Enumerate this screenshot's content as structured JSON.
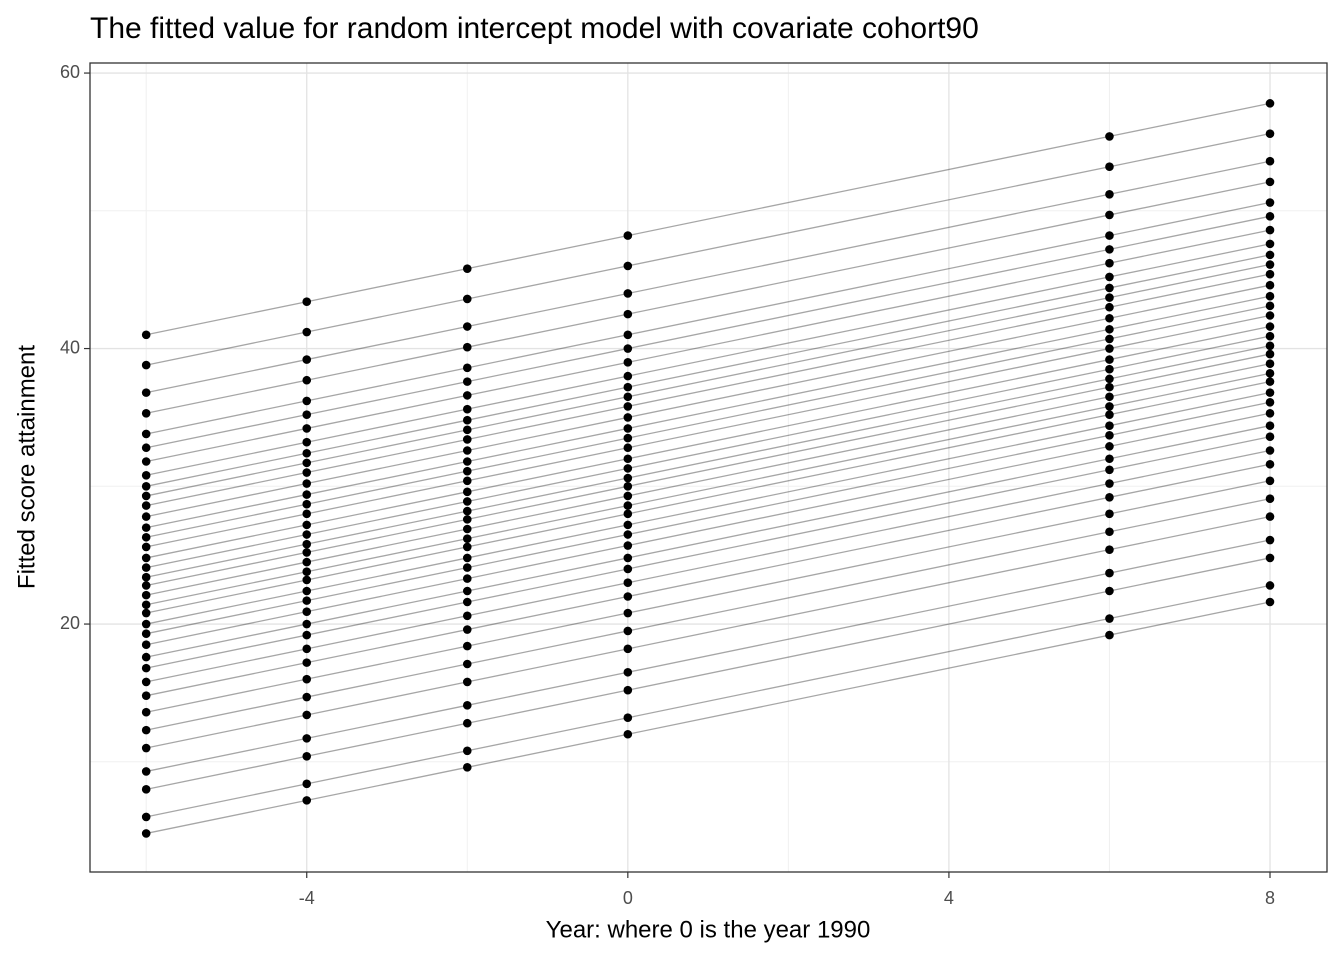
{
  "chart_data": {
    "type": "line",
    "title": "The fitted value for random intercept model with covariate cohort90",
    "xlabel": "Year: where 0 is the year 1990",
    "ylabel": "Fitted score attainment",
    "x": [
      -6,
      -4,
      -2,
      0,
      6,
      8
    ],
    "xlim": [
      -6.7,
      8.71
    ],
    "ylim": [
      2.0,
      60.73
    ],
    "xticks": [
      -4,
      0,
      4,
      8
    ],
    "yticks": [
      20,
      40,
      60
    ],
    "xminor": [
      -6,
      -2,
      2,
      6
    ],
    "yminor": [
      10,
      30,
      50
    ],
    "grid": true,
    "line_color": "#000000",
    "line_opacity": 0.35,
    "point_color": "#000000",
    "series": [
      {
        "values": [
          41.0,
          43.4,
          45.8,
          48.2,
          55.4,
          57.8
        ]
      },
      {
        "values": [
          38.8,
          41.2,
          43.6,
          46,
          53.2,
          55.6
        ]
      },
      {
        "values": [
          36.8,
          39.2,
          41.6,
          44,
          51.2,
          53.6
        ]
      },
      {
        "values": [
          35.3,
          37.7,
          40.1,
          42.5,
          49.7,
          52.1
        ]
      },
      {
        "values": [
          33.8,
          36.2,
          38.6,
          41,
          48.2,
          50.6
        ]
      },
      {
        "values": [
          32.8,
          35.2,
          37.6,
          40,
          47.2,
          49.6
        ]
      },
      {
        "values": [
          31.8,
          34.2,
          36.6,
          39,
          46.2,
          48.6
        ]
      },
      {
        "values": [
          30.8,
          33.2,
          35.6,
          38,
          45.2,
          47.6
        ]
      },
      {
        "values": [
          30.0,
          32.4,
          34.8,
          37.2,
          44.4,
          46.8
        ]
      },
      {
        "values": [
          29.3,
          31.7,
          34.1,
          36.5,
          43.7,
          46.1
        ]
      },
      {
        "values": [
          28.6,
          31.0,
          33.4,
          35.8,
          43.0,
          45.4
        ]
      },
      {
        "values": [
          27.8,
          30.2,
          32.6,
          35,
          42.2,
          44.6
        ]
      },
      {
        "values": [
          27.0,
          29.4,
          31.8,
          34.2,
          41.4,
          43.8
        ]
      },
      {
        "values": [
          26.3,
          28.7,
          31.1,
          33.5,
          40.7,
          43.1
        ]
      },
      {
        "values": [
          25.6,
          28.0,
          30.4,
          32.8,
          40.0,
          42.4
        ]
      },
      {
        "values": [
          24.8,
          27.2,
          29.6,
          32,
          39.2,
          41.6
        ]
      },
      {
        "values": [
          24.1,
          26.5,
          28.9,
          31.3,
          38.5,
          40.9
        ]
      },
      {
        "values": [
          23.4,
          25.8,
          28.2,
          30.6,
          37.8,
          40.2
        ]
      },
      {
        "values": [
          22.8,
          25.2,
          27.6,
          30,
          37.2,
          39.6
        ]
      },
      {
        "values": [
          22.1,
          24.5,
          26.9,
          29.3,
          36.5,
          38.9
        ]
      },
      {
        "values": [
          21.4,
          23.8,
          26.2,
          28.6,
          35.8,
          38.2
        ]
      },
      {
        "values": [
          20.8,
          23.2,
          25.6,
          28,
          35.2,
          37.6
        ]
      },
      {
        "values": [
          20.0,
          22.4,
          24.8,
          27.2,
          34.4,
          36.8
        ]
      },
      {
        "values": [
          19.3,
          21.7,
          24.1,
          26.5,
          33.7,
          36.1
        ]
      },
      {
        "values": [
          18.5,
          20.9,
          23.3,
          25.7,
          32.9,
          35.3
        ]
      },
      {
        "values": [
          17.6,
          20.0,
          22.4,
          24.8,
          32.0,
          34.4
        ]
      },
      {
        "values": [
          16.8,
          19.2,
          21.6,
          24,
          31.2,
          33.6
        ]
      },
      {
        "values": [
          15.8,
          18.2,
          20.6,
          23,
          30.2,
          32.6
        ]
      },
      {
        "values": [
          14.8,
          17.2,
          19.6,
          22,
          29.2,
          31.6
        ]
      },
      {
        "values": [
          13.6,
          16.0,
          18.4,
          20.8,
          28.0,
          30.4
        ]
      },
      {
        "values": [
          12.3,
          14.7,
          17.1,
          19.5,
          26.7,
          29.1
        ]
      },
      {
        "values": [
          11.0,
          13.4,
          15.8,
          18.2,
          25.4,
          27.8
        ]
      },
      {
        "values": [
          9.3,
          11.7,
          14.1,
          16.5,
          23.7,
          26.1
        ]
      },
      {
        "values": [
          8.0,
          10.4,
          12.8,
          15.2,
          22.4,
          24.8
        ]
      },
      {
        "values": [
          6.0,
          8.4,
          10.8,
          13.2,
          20.4,
          22.8
        ]
      },
      {
        "values": [
          4.8,
          7.2,
          9.6,
          12,
          19.2,
          21.6
        ]
      }
    ]
  }
}
